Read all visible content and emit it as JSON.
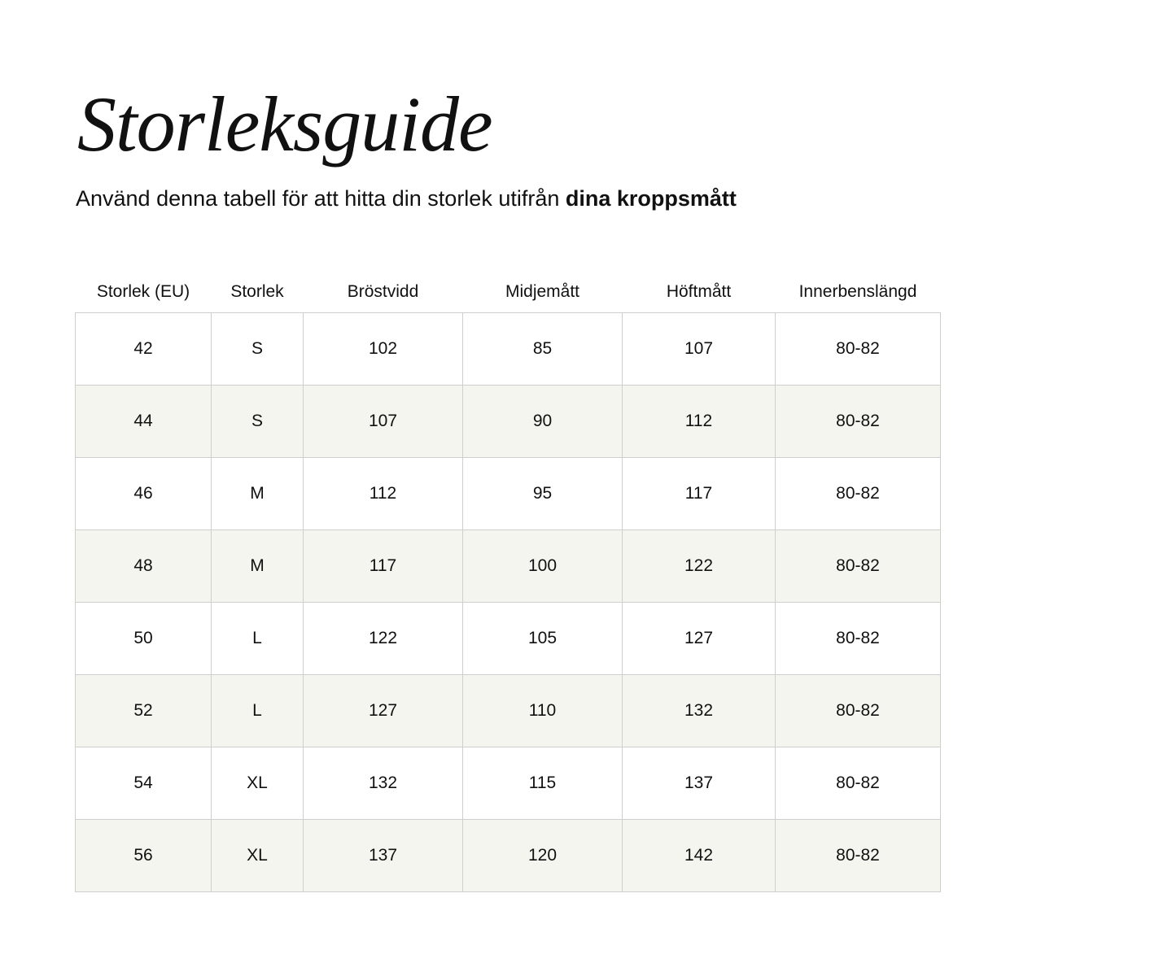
{
  "title": "Storleksguide",
  "subtitle": {
    "text": "Använd denna tabell för att hitta din storlek utifrån ",
    "bold": "dina kroppsmått"
  },
  "colors": {
    "stripe": "#f5f5f0",
    "border": "#cfcfcb",
    "text": "#111111"
  },
  "table": {
    "headers": [
      "Storlek (EU)",
      "Storlek",
      "Bröstvidd",
      "Midjemått",
      "Höftmått",
      "Innerbenslängd"
    ],
    "rows": [
      [
        "42",
        "S",
        "102",
        "85",
        "107",
        "80-82"
      ],
      [
        "44",
        "S",
        "107",
        "90",
        "112",
        "80-82"
      ],
      [
        "46",
        "M",
        "112",
        "95",
        "117",
        "80-82"
      ],
      [
        "48",
        "M",
        "117",
        "100",
        "122",
        "80-82"
      ],
      [
        "50",
        "L",
        "122",
        "105",
        "127",
        "80-82"
      ],
      [
        "52",
        "L",
        "127",
        "110",
        "132",
        "80-82"
      ],
      [
        "54",
        "XL",
        "132",
        "115",
        "137",
        "80-82"
      ],
      [
        "56",
        "XL",
        "137",
        "120",
        "142",
        "80-82"
      ]
    ]
  }
}
